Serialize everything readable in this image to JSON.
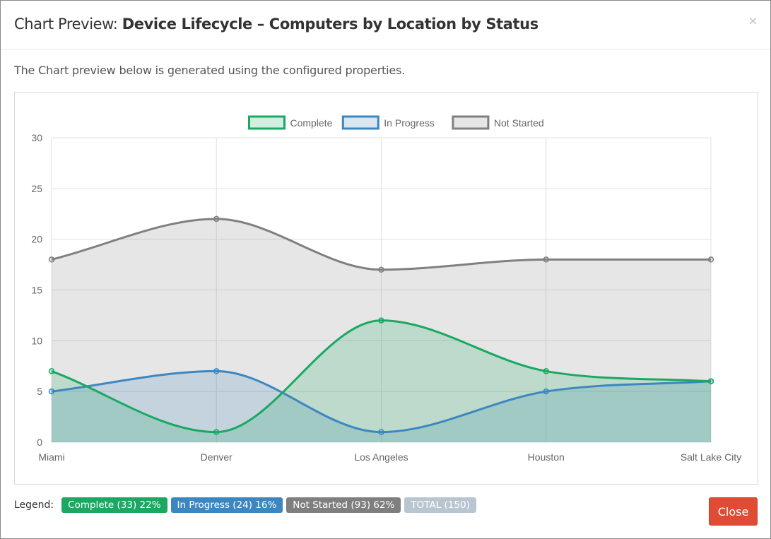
{
  "modal": {
    "title_prefix": "Chart Preview: ",
    "title_name": "Device Lifecycle – Computers by Location by Status",
    "close_symbol": "×",
    "description": "The Chart preview below is generated using the configured properties.",
    "close_label": "Close"
  },
  "legend": {
    "label": "Legend:",
    "badges": [
      {
        "text": "Complete (33)  22%",
        "color": "#1aa862"
      },
      {
        "text": "In Progress (24)  16%",
        "color": "#3d87c0"
      },
      {
        "text": "Not Started (93)  62%",
        "color": "#7f7f7f"
      },
      {
        "text": "TOTAL (150)",
        "color": "#b9c6d2"
      }
    ]
  },
  "chart_data": {
    "type": "line",
    "categories": [
      "Miami",
      "Denver",
      "Los Angeles",
      "Houston",
      "Salt Lake City"
    ],
    "series": [
      {
        "name": "Complete",
        "values": [
          7,
          1,
          12,
          7,
          6
        ],
        "color": "#1aa862",
        "fill": "rgba(26,168,98,0.2)"
      },
      {
        "name": "In Progress",
        "values": [
          5,
          7,
          1,
          5,
          6
        ],
        "color": "#3d87c0",
        "fill": "rgba(61,135,192,0.2)"
      },
      {
        "name": "Not Started",
        "values": [
          18,
          22,
          17,
          18,
          18
        ],
        "color": "#808080",
        "fill": "rgba(128,128,128,0.2)"
      }
    ],
    "ylim": [
      0,
      30
    ],
    "yticks": [
      0,
      5,
      10,
      15,
      20,
      25,
      30
    ],
    "grid": true,
    "legend_position": "top"
  }
}
